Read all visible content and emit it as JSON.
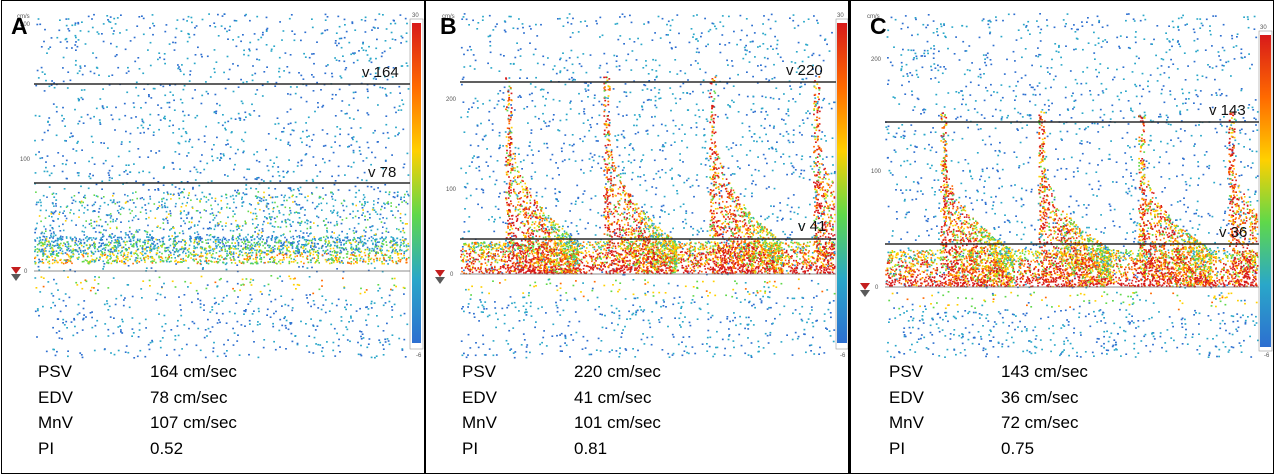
{
  "panels": [
    {
      "letter": "A",
      "scale": {
        "unit": "cm/s",
        "max_tick": "200",
        "mid_tick": "100",
        "zero": "0",
        "scale_max": "30",
        "scale_min": "-6"
      },
      "calipers": [
        {
          "label": "v 164",
          "velocity": 164
        },
        {
          "label": "v 78",
          "velocity": 78
        }
      ],
      "measurements": [
        {
          "label": "PSV",
          "value": "164 cm/sec"
        },
        {
          "label": "EDV",
          "value": "78 cm/sec"
        },
        {
          "label": "MnV",
          "value": "107 cm/sec"
        },
        {
          "label": "PI",
          "value": "0.52"
        }
      ]
    },
    {
      "letter": "B",
      "scale": {
        "unit": "cm/s",
        "max_tick": "200",
        "mid_tick": "100",
        "zero": "0",
        "scale_max": "30",
        "scale_min": "-6"
      },
      "calipers": [
        {
          "label": "v 220",
          "velocity": 220
        },
        {
          "label": "v 41",
          "velocity": 41
        }
      ],
      "measurements": [
        {
          "label": "PSV",
          "value": "220 cm/sec"
        },
        {
          "label": "EDV",
          "value": "41 cm/sec"
        },
        {
          "label": "MnV",
          "value": "101 cm/sec"
        },
        {
          "label": "PI",
          "value": "0.81"
        }
      ]
    },
    {
      "letter": "C",
      "scale": {
        "unit": "cm/s",
        "max_tick": "200",
        "mid_tick": "100",
        "zero": "0",
        "scale_max": "30",
        "scale_min": "-6"
      },
      "calipers": [
        {
          "label": "v 143",
          "velocity": 143
        },
        {
          "label": "v 36",
          "velocity": 36
        }
      ],
      "measurements": [
        {
          "label": "PSV",
          "value": "143 cm/sec"
        },
        {
          "label": "EDV",
          "value": "36 cm/sec"
        },
        {
          "label": "MnV",
          "value": "72 cm/sec"
        },
        {
          "label": "PI",
          "value": "0.75"
        }
      ]
    }
  ],
  "colors": {
    "caliper_line": "#2b2b2b",
    "color_scale": [
      "#d81a1a",
      "#ff6a00",
      "#ffd000",
      "#5fd84a",
      "#2aa7c9",
      "#2d6fd0"
    ]
  }
}
